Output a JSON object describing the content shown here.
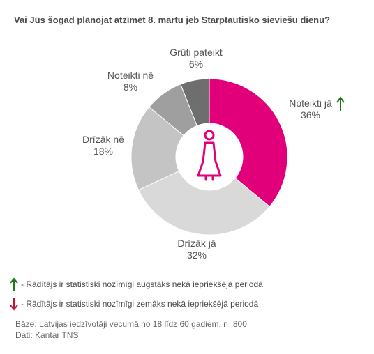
{
  "chart_data": {
    "type": "donut",
    "title": "Vai Jūs šogad plānojat atzīmēt 8. martu jeb Starptautisko sieviešu dienu?",
    "slices": [
      {
        "label": "Noteikti jā",
        "value": 36,
        "display": "36%",
        "color": "#e2007a",
        "significance": "up"
      },
      {
        "label": "Drīzāk jā",
        "value": 32,
        "display": "32%",
        "color": "#d9d9d9",
        "significance": ""
      },
      {
        "label": "Drīzāk nē",
        "value": 18,
        "display": "18%",
        "color": "#c4c4c4",
        "significance": ""
      },
      {
        "label": "Noteikti nē",
        "value": 8,
        "display": "8%",
        "color": "#9f9f9f",
        "significance": ""
      },
      {
        "label": "Grūti pateikt",
        "value": 6,
        "display": "6%",
        "color": "#6e6e6e",
        "significance": ""
      }
    ],
    "center_icon": "woman-icon"
  },
  "colors": {
    "accent": "#e2007a",
    "up_arrow": "#1a7a1a",
    "down_arrow": "#c8102e"
  },
  "legend": {
    "up_text": "- Rādītājs ir statistiski nozīmīgi augstāks nekā iepriekšējā periodā",
    "down_text": "- Rādītājs ir statistiski nozīmīgi zemāks nekā iepriekšējā periodā"
  },
  "footnote": {
    "base": "Bāze: Latvijas iedzīvotāji vecumā no 18 līdz 60 gadiem, n=800",
    "source": "Dati: Kantar TNS"
  }
}
